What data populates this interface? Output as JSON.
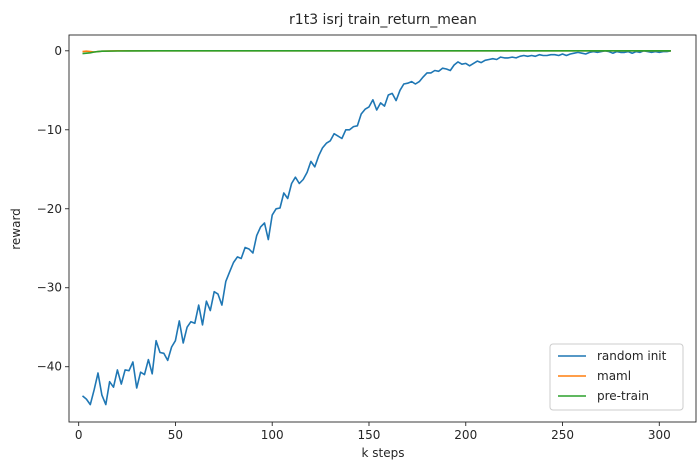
{
  "chart_data": {
    "type": "line",
    "title": "r1t3 isrj train_return_mean",
    "xlabel": "k steps",
    "ylabel": "reward",
    "xlim": [
      -5,
      320
    ],
    "ylim": [
      -47,
      2
    ],
    "xticks": [
      0,
      50,
      100,
      150,
      200,
      250,
      300
    ],
    "yticks": [
      0,
      -10,
      -20,
      -30,
      -40
    ],
    "ytick_labels": [
      "0",
      "−10",
      "−20",
      "−30",
      "−40"
    ],
    "grid": false,
    "legend_position": "lower-right",
    "series": [
      {
        "name": "random init",
        "color": "#1f77b4",
        "x": [
          2,
          4,
          6,
          8,
          10,
          12,
          14,
          16,
          18,
          20,
          22,
          24,
          26,
          28,
          30,
          32,
          34,
          36,
          38,
          40,
          42,
          44,
          46,
          48,
          50,
          52,
          54,
          56,
          58,
          60,
          62,
          64,
          66,
          68,
          70,
          72,
          74,
          76,
          78,
          80,
          82,
          84,
          86,
          88,
          90,
          92,
          94,
          96,
          98,
          100,
          102,
          104,
          106,
          108,
          110,
          112,
          114,
          116,
          118,
          120,
          122,
          124,
          126,
          128,
          130,
          132,
          134,
          136,
          138,
          140,
          142,
          144,
          146,
          148,
          150,
          152,
          154,
          156,
          158,
          160,
          162,
          164,
          166,
          168,
          170,
          172,
          174,
          176,
          178,
          180,
          182,
          184,
          186,
          188,
          190,
          192,
          194,
          196,
          198,
          200,
          202,
          204,
          206,
          208,
          210,
          212,
          214,
          216,
          218,
          220,
          222,
          224,
          226,
          228,
          230,
          232,
          234,
          236,
          238,
          240,
          242,
          244,
          246,
          248,
          250,
          252,
          254,
          256,
          258,
          260,
          262,
          264,
          266,
          268,
          270,
          272,
          274,
          276,
          278,
          280,
          282,
          284,
          286,
          288,
          290,
          292,
          294,
          296,
          298,
          300,
          302,
          304,
          306
        ],
        "y": [
          -43.7,
          -44.1,
          -44.8,
          -42.9,
          -40.8,
          -43.6,
          -44.8,
          -41.9,
          -42.6,
          -40.4,
          -42.2,
          -40.4,
          -40.5,
          -39.4,
          -42.7,
          -40.7,
          -41.0,
          -39.1,
          -40.9,
          -36.7,
          -38.2,
          -38.3,
          -39.2,
          -37.5,
          -36.7,
          -34.2,
          -37.0,
          -35.0,
          -34.3,
          -34.5,
          -32.2,
          -34.7,
          -31.7,
          -32.9,
          -30.5,
          -30.8,
          -32.2,
          -29.2,
          -28.0,
          -26.8,
          -26.1,
          -26.3,
          -24.9,
          -25.1,
          -25.6,
          -23.4,
          -22.3,
          -21.8,
          -23.9,
          -20.8,
          -20.0,
          -19.9,
          -18.0,
          -18.7,
          -16.8,
          -16.0,
          -16.8,
          -16.3,
          -15.4,
          -14.0,
          -14.7,
          -13.3,
          -12.3,
          -11.7,
          -11.4,
          -10.5,
          -10.8,
          -11.1,
          -10.0,
          -10.0,
          -9.6,
          -9.5,
          -8.0,
          -7.4,
          -7.1,
          -6.2,
          -7.5,
          -6.6,
          -7.0,
          -5.6,
          -5.4,
          -6.3,
          -5.0,
          -4.2,
          -4.1,
          -3.9,
          -4.2,
          -3.9,
          -3.3,
          -2.8,
          -2.8,
          -2.5,
          -2.6,
          -2.2,
          -2.3,
          -2.5,
          -1.8,
          -1.4,
          -1.7,
          -1.6,
          -1.9,
          -1.6,
          -1.3,
          -1.5,
          -1.2,
          -1.1,
          -1.0,
          -1.1,
          -0.8,
          -0.9,
          -0.9,
          -0.8,
          -0.9,
          -0.7,
          -0.6,
          -0.7,
          -0.6,
          -0.7,
          -0.5,
          -0.6,
          -0.6,
          -0.5,
          -0.5,
          -0.6,
          -0.4,
          -0.6,
          -0.4,
          -0.3,
          -0.2,
          -0.3,
          -0.4,
          -0.2,
          -0.1,
          -0.2,
          -0.1,
          -0.0,
          -0.1,
          -0.3,
          -0.1,
          -0.2,
          -0.2,
          -0.1,
          -0.3,
          -0.1,
          -0.2,
          -0.0,
          -0.1,
          -0.2,
          -0.1,
          -0.2,
          -0.1,
          -0.1,
          0.0
        ]
      },
      {
        "name": "maml",
        "color": "#ff7f0e",
        "x": [
          2,
          4,
          6,
          8,
          10,
          12,
          20,
          40,
          60,
          80,
          100,
          150,
          200,
          250,
          300,
          306
        ],
        "y": [
          -0.1,
          -0.05,
          -0.1,
          -0.15,
          -0.1,
          -0.05,
          0,
          0,
          0,
          0,
          0,
          0,
          0,
          0,
          0,
          0
        ]
      },
      {
        "name": "pre-train",
        "color": "#2ca02c",
        "x": [
          2,
          4,
          6,
          8,
          10,
          12,
          20,
          40,
          60,
          80,
          100,
          150,
          200,
          250,
          300,
          306
        ],
        "y": [
          -0.35,
          -0.3,
          -0.25,
          -0.15,
          -0.1,
          -0.05,
          -0.02,
          0,
          0,
          0,
          0,
          0,
          0,
          0,
          0,
          0
        ]
      }
    ]
  }
}
